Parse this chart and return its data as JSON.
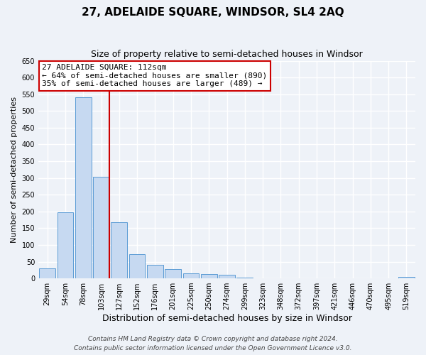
{
  "title": "27, ADELAIDE SQUARE, WINDSOR, SL4 2AQ",
  "subtitle": "Size of property relative to semi-detached houses in Windsor",
  "xlabel": "Distribution of semi-detached houses by size in Windsor",
  "ylabel": "Number of semi-detached properties",
  "bin_labels": [
    "29sqm",
    "54sqm",
    "78sqm",
    "103sqm",
    "127sqm",
    "152sqm",
    "176sqm",
    "201sqm",
    "225sqm",
    "250sqm",
    "274sqm",
    "299sqm",
    "323sqm",
    "348sqm",
    "372sqm",
    "397sqm",
    "421sqm",
    "446sqm",
    "470sqm",
    "495sqm",
    "519sqm"
  ],
  "bin_values": [
    30,
    198,
    540,
    303,
    168,
    73,
    40,
    28,
    15,
    13,
    10,
    2,
    0,
    0,
    0,
    0,
    0,
    0,
    0,
    0,
    5
  ],
  "vline_bin_index": 3,
  "bar_color": "#c6d9f1",
  "bar_edge_color": "#5b9bd5",
  "vline_color": "#cc0000",
  "annotation_title": "27 ADELAIDE SQUARE: 112sqm",
  "annotation_line1": "← 64% of semi-detached houses are smaller (890)",
  "annotation_line2": "35% of semi-detached houses are larger (489) →",
  "annotation_box_facecolor": "#ffffff",
  "annotation_box_edgecolor": "#cc0000",
  "ylim": [
    0,
    650
  ],
  "yticks": [
    0,
    50,
    100,
    150,
    200,
    250,
    300,
    350,
    400,
    450,
    500,
    550,
    600,
    650
  ],
  "footer_line1": "Contains HM Land Registry data © Crown copyright and database right 2024.",
  "footer_line2": "Contains public sector information licensed under the Open Government Licence v3.0.",
  "background_color": "#eef2f8",
  "grid_color": "#ffffff",
  "title_fontsize": 11,
  "subtitle_fontsize": 9,
  "xlabel_fontsize": 9,
  "ylabel_fontsize": 8,
  "tick_fontsize": 7,
  "annotation_fontsize": 8,
  "footer_fontsize": 6.5
}
